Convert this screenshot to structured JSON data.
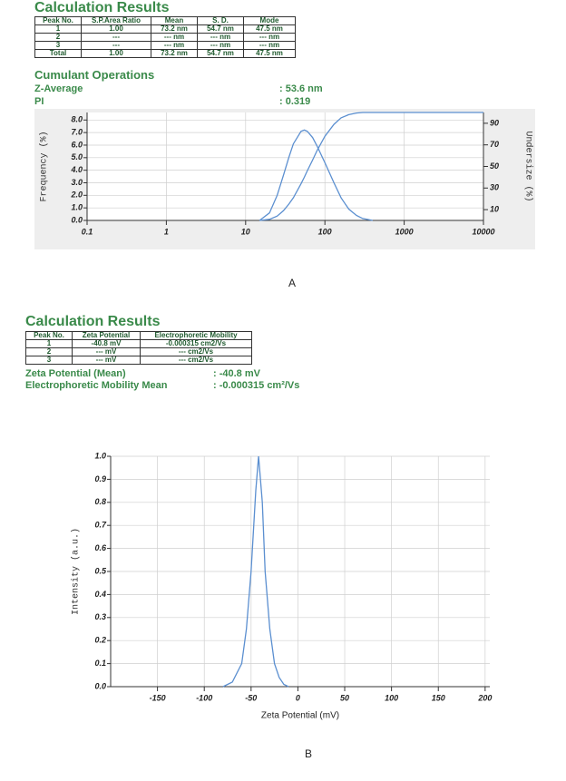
{
  "panels": [
    {
      "title": "Calculation Results",
      "table": {
        "header": [
          "Peak No.",
          "S.P.Area Ratio",
          "Mean",
          "S. D.",
          "Mode"
        ],
        "rows": [
          [
            "1",
            "1.00",
            "73.2 nm",
            "54.7 nm",
            "47.5 nm"
          ],
          [
            "2",
            "---",
            "--- nm",
            "--- nm",
            "--- nm"
          ],
          [
            "3",
            "---",
            "--- nm",
            "--- nm",
            "--- nm"
          ],
          [
            "Total",
            "1.00",
            "73.2 nm",
            "54.7 nm",
            "47.5 nm"
          ]
        ]
      },
      "subtitle": "Cumulant Operations",
      "summary": [
        [
          "Z-Average",
          ": 53.6 nm"
        ],
        [
          "PI",
          ": 0.319"
        ]
      ],
      "label": "A"
    },
    {
      "title": "Calculation Results",
      "table": {
        "header": [
          "Peak No.",
          "Zeta Potential",
          "Electrophoretic Mobility"
        ],
        "rows": [
          [
            "1",
            "-40.8 mV",
            "-0.000315 cm2/Vs"
          ],
          [
            "2",
            "--- mV",
            "--- cm2/Vs"
          ],
          [
            "3",
            "--- mV",
            "--- cm2/Vs"
          ]
        ]
      },
      "summary": [
        [
          "Zeta Potential (Mean)",
          ": -40.8 mV"
        ],
        [
          "Electrophoretic Mobility Mean",
          ": -0.000315 cm²/Vs"
        ]
      ],
      "label": "B"
    }
  ],
  "chart_data": [
    {
      "type": "line",
      "x_scale": "log",
      "x": [
        15,
        20,
        25,
        30,
        35,
        40,
        50,
        55,
        60,
        70,
        80,
        100,
        130,
        160,
        200,
        250,
        300,
        400,
        1000,
        10000
      ],
      "series": [
        {
          "color": "#5b8fd0",
          "values": [
            0,
            0.6,
            2.0,
            3.6,
            5.0,
            6.1,
            7.1,
            7.2,
            7.1,
            6.6,
            5.9,
            4.6,
            3.0,
            1.8,
            0.9,
            0.4,
            0.15,
            0,
            null,
            null
          ]
        },
        {
          "color": "#5b8fd0",
          "axis": "y2",
          "values": [
            0,
            1,
            4,
            9,
            15,
            21,
            34,
            40,
            46,
            56,
            65,
            78,
            89,
            95,
            98,
            99.5,
            100,
            100,
            100,
            100
          ]
        }
      ],
      "xlim": [
        0.1,
        10000
      ],
      "xticks": [
        0.1,
        1,
        10,
        100,
        1000,
        10000
      ],
      "ylim": [
        0,
        8.6
      ],
      "yticks": [
        {
          "value": 0,
          "label": "0.0"
        },
        {
          "value": 1,
          "label": "1.0"
        },
        {
          "value": 2,
          "label": "2.0"
        },
        {
          "value": 3,
          "label": "3.0"
        },
        {
          "value": 4,
          "label": "4.0"
        },
        {
          "value": 5,
          "label": "5.0"
        },
        {
          "value": 6,
          "label": "6.0"
        },
        {
          "value": 7,
          "label": "7.0"
        },
        {
          "value": 8,
          "label": "8.0"
        }
      ],
      "y2lim": [
        0,
        100
      ],
      "y2ticks": [
        10,
        30,
        50,
        70,
        90
      ],
      "ylabel": "Frequency (%)",
      "y2label": "Undersize (%)",
      "grid": true
    },
    {
      "type": "line",
      "x": [
        -80,
        -70,
        -60,
        -55,
        -50,
        -45,
        -42,
        -38,
        -35,
        -30,
        -25,
        -20,
        -15,
        -10
      ],
      "series": [
        {
          "color": "#5b8fd0",
          "values": [
            0,
            0.02,
            0.1,
            0.25,
            0.5,
            0.85,
            1.0,
            0.8,
            0.5,
            0.25,
            0.1,
            0.04,
            0.01,
            0
          ]
        }
      ],
      "xlim": [
        -200,
        205
      ],
      "xticks": [
        -150,
        -100,
        -50,
        0,
        50,
        100,
        150,
        200
      ],
      "ylim": [
        0,
        1
      ],
      "yticks": [
        {
          "value": 0,
          "label": "0.0"
        },
        0.1,
        0.2,
        0.3,
        0.4,
        0.5,
        0.6,
        0.7,
        0.8,
        0.9,
        {
          "value": 1,
          "label": "1.0"
        }
      ],
      "xlabel": "Zeta Potential (mV)",
      "ylabel": "Intensity (a.u.)",
      "grid": true
    }
  ]
}
